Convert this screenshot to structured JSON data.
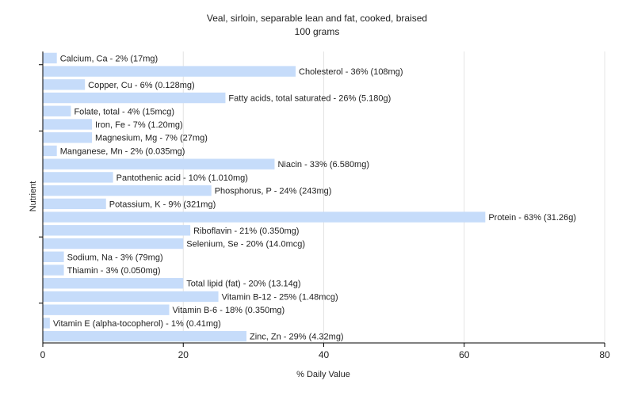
{
  "chart_data": {
    "type": "bar",
    "orientation": "horizontal",
    "title": "Veal, sirloin, separable lean and fat, cooked, braised",
    "subtitle": "100 grams",
    "xlabel": "% Daily Value",
    "ylabel": "Nutrient",
    "xlim": [
      0,
      80
    ],
    "xticks": [
      0,
      20,
      40,
      60,
      80
    ],
    "grid": true,
    "bar_color": "#c6dcfa",
    "categories": [
      "Calcium, Ca",
      "Cholesterol",
      "Copper, Cu",
      "Fatty acids, total saturated",
      "Folate, total",
      "Iron, Fe",
      "Magnesium, Mg",
      "Manganese, Mn",
      "Niacin",
      "Pantothenic acid",
      "Phosphorus, P",
      "Potassium, K",
      "Protein",
      "Riboflavin",
      "Selenium, Se",
      "Sodium, Na",
      "Thiamin",
      "Total lipid (fat)",
      "Vitamin B-12",
      "Vitamin B-6",
      "Vitamin E (alpha-tocopherol)",
      "Zinc, Zn"
    ],
    "values": [
      2,
      36,
      6,
      26,
      4,
      7,
      7,
      2,
      33,
      10,
      24,
      9,
      63,
      21,
      20,
      3,
      3,
      20,
      25,
      18,
      1,
      29
    ],
    "labels": [
      "Calcium, Ca - 2% (17mg)",
      "Cholesterol - 36% (108mg)",
      "Copper, Cu - 6% (0.128mg)",
      "Fatty acids, total saturated - 26% (5.180g)",
      "Folate, total - 4% (15mcg)",
      "Iron, Fe - 7% (1.20mg)",
      "Magnesium, Mg - 7% (27mg)",
      "Manganese, Mn - 2% (0.035mg)",
      "Niacin - 33% (6.580mg)",
      "Pantothenic acid - 10% (1.010mg)",
      "Phosphorus, P - 24% (243mg)",
      "Potassium, K - 9% (321mg)",
      "Protein - 63% (31.26g)",
      "Riboflavin - 21% (0.350mg)",
      "Selenium, Se - 20% (14.0mcg)",
      "Sodium, Na - 3% (79mg)",
      "Thiamin - 3% (0.050mg)",
      "Total lipid (fat) - 20% (13.14g)",
      "Vitamin B-12 - 25% (1.48mcg)",
      "Vitamin B-6 - 18% (0.350mg)",
      "Vitamin E (alpha-tocopherol) - 1% (0.41mg)",
      "Zinc, Zn - 29% (4.32mg)"
    ]
  }
}
